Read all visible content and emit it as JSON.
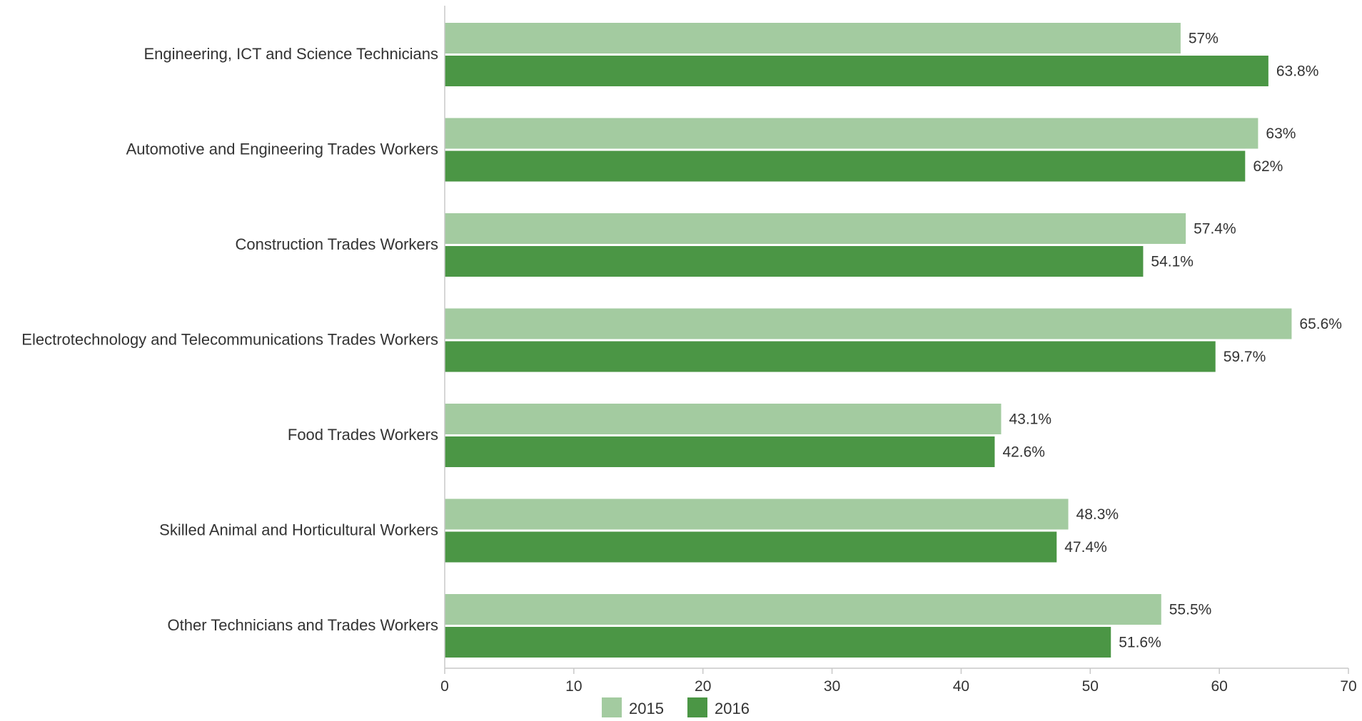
{
  "chart_data": {
    "type": "bar",
    "orientation": "horizontal",
    "title": "",
    "xlabel": "",
    "ylabel": "",
    "categories": [
      "Engineering, ICT and Science Technicians",
      "Automotive and Engineering Trades Workers",
      "Construction Trades Workers",
      "Electrotechnology and Telecommunications Trades Workers",
      "Food Trades Workers",
      "Skilled Animal and Horticultural Workers",
      "Other Technicians and Trades Workers"
    ],
    "series": [
      {
        "name": "2015",
        "color": "#a3cba0",
        "values": [
          57,
          63,
          57.4,
          65.6,
          43.1,
          48.3,
          55.5
        ],
        "labels": [
          "57%",
          "63%",
          "57.4%",
          "65.6%",
          "43.1%",
          "48.3%",
          "55.5%"
        ]
      },
      {
        "name": "2016",
        "color": "#4b9645",
        "values": [
          63.8,
          62,
          54.1,
          59.7,
          42.6,
          47.4,
          51.6
        ],
        "labels": [
          "63.8%",
          "62%",
          "54.1%",
          "59.7%",
          "42.6%",
          "47.4%",
          "51.6%"
        ]
      }
    ],
    "xlim": [
      0,
      70
    ],
    "xticks": [
      0,
      10,
      20,
      30,
      40,
      50,
      60,
      70
    ],
    "xtick_labels": [
      "0",
      "10",
      "20",
      "30",
      "40",
      "50",
      "60",
      "70"
    ],
    "grid": false,
    "legend_position": "bottom-center"
  }
}
